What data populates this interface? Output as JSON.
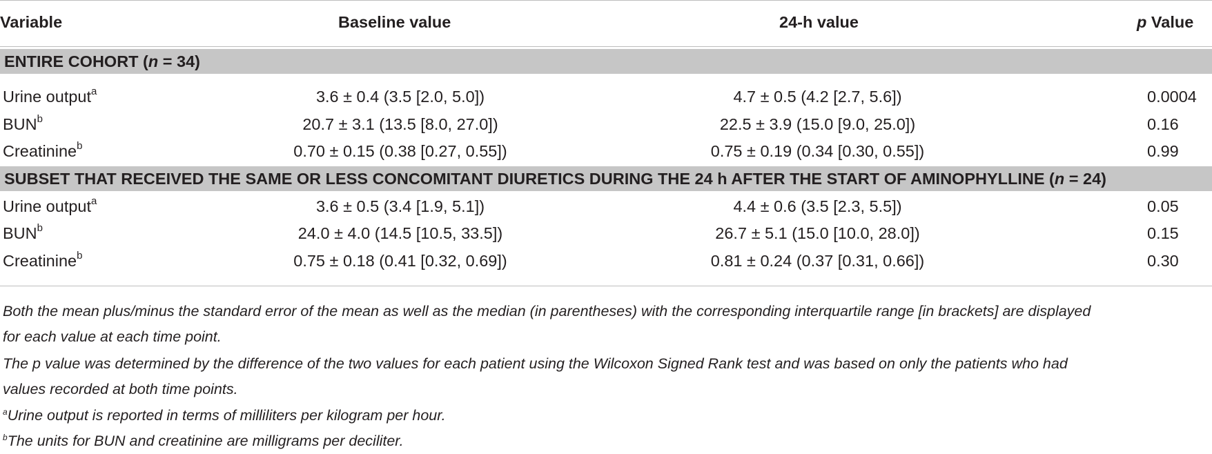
{
  "table": {
    "headers": {
      "variable": "Variable",
      "baseline": "Baseline value",
      "h24": "24-h value",
      "p_italic": "p",
      "p_rest": " Value"
    },
    "groups": [
      {
        "title_prefix": "ENTIRE COHORT (",
        "n_symbol": "n",
        "n_value": " = 34)",
        "rows": [
          {
            "variable": "Urine output",
            "sup": "a",
            "baseline": "3.6 ± 0.4 (3.5 [2.0, 5.0])",
            "h24": "4.7 ± 0.5 (4.2 [2.7, 5.6])",
            "p": "0.0004"
          },
          {
            "variable": "BUN",
            "sup": "b",
            "baseline": "20.7 ± 3.1 (13.5 [8.0, 27.0])",
            "h24": "22.5 ± 3.9 (15.0 [9.0, 25.0])",
            "p": "0.16"
          },
          {
            "variable": "Creatinine",
            "sup": "b",
            "baseline": "0.70 ± 0.15 (0.38 [0.27, 0.55])",
            "h24": "0.75 ± 0.19 (0.34 [0.30, 0.55])",
            "p": "0.99"
          }
        ]
      },
      {
        "title_prefix": "SUBSET THAT RECEIVED THE SAME OR LESS CONCOMITANT DIURETICS DURING THE 24 h AFTER THE START OF AMINOPHYLLINE (",
        "n_symbol": "n",
        "n_value": " = 24)",
        "rows": [
          {
            "variable": "Urine output",
            "sup": "a",
            "baseline": "3.6 ± 0.5 (3.4 [1.9, 5.1])",
            "h24": "4.4 ± 0.6 (3.5 [2.3, 5.5])",
            "p": "0.05"
          },
          {
            "variable": "BUN",
            "sup": "b",
            "baseline": "24.0 ± 4.0 (14.5 [10.5, 33.5])",
            "h24": "26.7 ± 5.1 (15.0 [10.0, 28.0])",
            "p": "0.15"
          },
          {
            "variable": "Creatinine",
            "sup": "b",
            "baseline": "0.75 ± 0.18 (0.41 [0.32, 0.69])",
            "h24": "0.81 ± 0.24 (0.37 [0.31, 0.66])",
            "p": "0.30"
          }
        ]
      }
    ]
  },
  "footnotes": {
    "line1": "Both the mean plus/minus the standard error of the mean as well as the median (in parentheses) with the corresponding interquartile range [in brackets] are displayed",
    "line2": "for each value at each time point.",
    "line3": "The p value was determined by the difference of the two values for each patient using the Wilcoxon Signed Rank test and was based on only the patients who had",
    "line4": "values recorded at both time points.",
    "note_a_mark": "a",
    "note_a_text": "Urine output is reported in terms of milliliters per kilogram per hour.",
    "note_b_mark": "b",
    "note_b_text": "The units for BUN and creatinine are milligrams per deciliter."
  }
}
